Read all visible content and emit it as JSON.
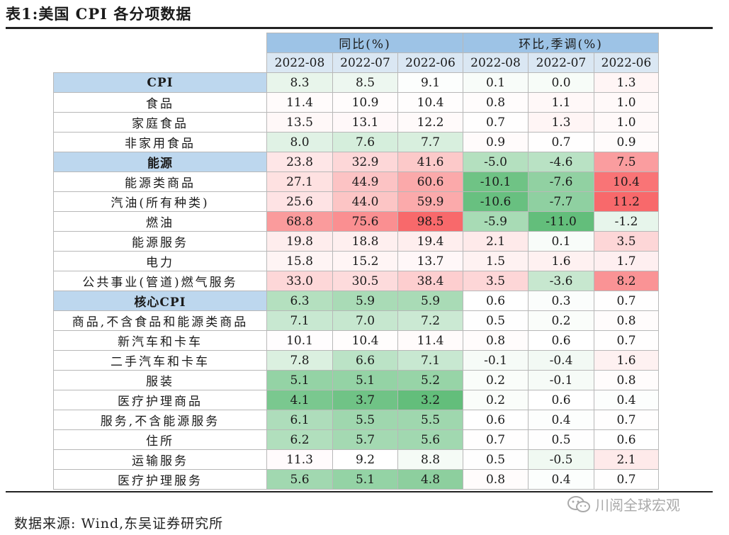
{
  "title": "表1:美国 CPI 各分项数据",
  "header": {
    "group1": "同比(%)",
    "group2": "环比,季调(%)",
    "dates": [
      "2022-08",
      "2022-07",
      "2022-06",
      "2022-08",
      "2022-07",
      "2022-06"
    ]
  },
  "rows": [
    {
      "label": "CPI",
      "highlight": true,
      "values": [
        "8.3",
        "8.5",
        "9.1",
        "0.1",
        "0.0",
        "1.3"
      ]
    },
    {
      "label": "食品",
      "highlight": false,
      "values": [
        "11.4",
        "10.9",
        "10.4",
        "0.8",
        "1.1",
        "1.0"
      ]
    },
    {
      "label": "家庭食品",
      "highlight": false,
      "values": [
        "13.5",
        "13.1",
        "12.2",
        "0.7",
        "1.3",
        "1.0"
      ]
    },
    {
      "label": "非家用食品",
      "highlight": false,
      "values": [
        "8.0",
        "7.6",
        "7.7",
        "0.9",
        "0.7",
        "0.9"
      ]
    },
    {
      "label": "能源",
      "highlight": true,
      "values": [
        "23.8",
        "32.9",
        "41.6",
        "-5.0",
        "-4.6",
        "7.5"
      ]
    },
    {
      "label": "能源类商品",
      "highlight": false,
      "values": [
        "27.1",
        "44.9",
        "60.6",
        "-10.1",
        "-7.6",
        "10.4"
      ]
    },
    {
      "label": "汽油(所有种类)",
      "highlight": false,
      "values": [
        "25.6",
        "44.0",
        "59.9",
        "-10.6",
        "-7.7",
        "11.2"
      ]
    },
    {
      "label": "燃油",
      "highlight": false,
      "values": [
        "68.8",
        "75.6",
        "98.5",
        "-5.9",
        "-11.0",
        "-1.2"
      ]
    },
    {
      "label": "能源服务",
      "highlight": false,
      "values": [
        "19.8",
        "18.8",
        "19.4",
        "2.1",
        "0.1",
        "3.5"
      ]
    },
    {
      "label": "电力",
      "highlight": false,
      "values": [
        "15.8",
        "15.2",
        "13.7",
        "1.5",
        "1.6",
        "1.7"
      ]
    },
    {
      "label": "公共事业(管道)燃气服务",
      "highlight": false,
      "values": [
        "33.0",
        "30.5",
        "38.4",
        "3.5",
        "-3.6",
        "8.2"
      ]
    },
    {
      "label": "核心CPI",
      "highlight": true,
      "values": [
        "6.3",
        "5.9",
        "5.9",
        "0.6",
        "0.3",
        "0.7"
      ]
    },
    {
      "label": "商品,不含食品和能源类商品",
      "highlight": false,
      "values": [
        "7.1",
        "7.0",
        "7.2",
        "0.5",
        "0.2",
        "0.8"
      ]
    },
    {
      "label": "新汽车和卡车",
      "highlight": false,
      "values": [
        "10.1",
        "10.4",
        "11.4",
        "0.8",
        "0.6",
        "0.7"
      ]
    },
    {
      "label": "二手汽车和卡车",
      "highlight": false,
      "values": [
        "7.8",
        "6.6",
        "7.1",
        "-0.1",
        "-0.4",
        "1.6"
      ]
    },
    {
      "label": "服装",
      "highlight": false,
      "values": [
        "5.1",
        "5.1",
        "5.2",
        "0.2",
        "-0.1",
        "0.8"
      ]
    },
    {
      "label": "医疗护理商品",
      "highlight": false,
      "values": [
        "4.1",
        "3.7",
        "3.2",
        "0.2",
        "0.6",
        "0.4"
      ]
    },
    {
      "label": "服务,不含能源服务",
      "highlight": false,
      "values": [
        "6.1",
        "5.5",
        "5.5",
        "0.6",
        "0.4",
        "0.7"
      ]
    },
    {
      "label": "住所",
      "highlight": false,
      "values": [
        "6.2",
        "5.7",
        "5.6",
        "0.7",
        "0.5",
        "0.6"
      ]
    },
    {
      "label": "运输服务",
      "highlight": false,
      "values": [
        "11.3",
        "9.2",
        "8.8",
        "0.5",
        "-0.5",
        "2.1"
      ]
    },
    {
      "label": "医疗护理服务",
      "highlight": false,
      "values": [
        "5.6",
        "5.1",
        "4.8",
        "0.8",
        "0.4",
        "0.7"
      ]
    }
  ],
  "source": "数据来源: Wind,东吴证券研究所",
  "watermark": "川阅全球宏观",
  "colors": {
    "header_group": "#9dc3e6",
    "header_date": "#dae7f3",
    "highlight_label": "#bdd7ee",
    "scale_low": "#63be7b",
    "scale_mid": "#ffffff",
    "scale_high": "#f8696b"
  }
}
